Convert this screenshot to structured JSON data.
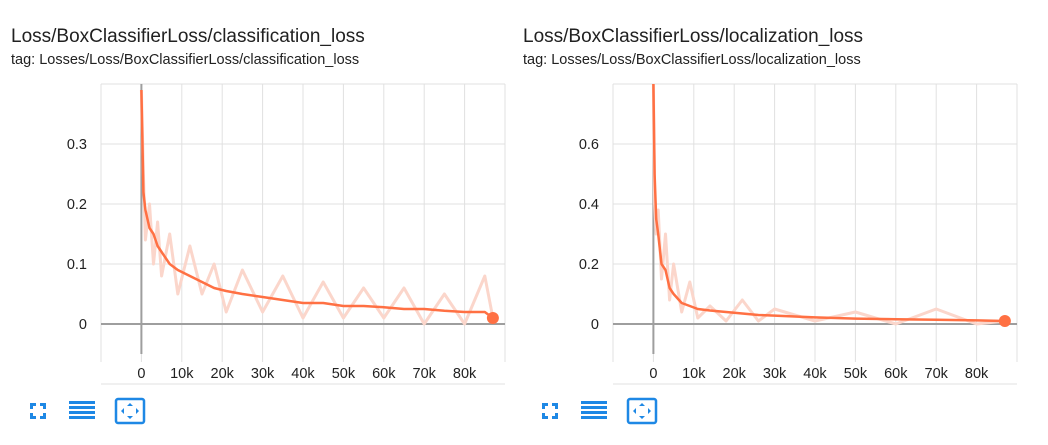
{
  "accent_color": "#ff7043",
  "series_color": "#ff7043",
  "raw_color": "#fbd6cb",
  "toolbar_icons": [
    "fullscreen-icon",
    "data-table-icon",
    "fit-domain-icon"
  ],
  "chart_data": [
    {
      "type": "line",
      "title": "Loss/BoxClassifierLoss/classification_loss",
      "subtitle": "tag: Losses/Loss/BoxClassifierLoss/classification_loss",
      "xlabel": "",
      "ylabel": "",
      "xlim": [
        -10000,
        90000
      ],
      "ylim": [
        -0.05,
        0.4
      ],
      "x_ticks": [
        0,
        10000,
        20000,
        30000,
        40000,
        50000,
        60000,
        70000,
        80000
      ],
      "x_tick_labels": [
        "0",
        "10k",
        "20k",
        "30k",
        "40k",
        "50k",
        "60k",
        "70k",
        "80k"
      ],
      "y_ticks": [
        0,
        0.1,
        0.2,
        0.3
      ],
      "y_tick_labels": [
        "0",
        "0.1",
        "0.2",
        "0.3"
      ],
      "grid": true,
      "legend": "none",
      "series": [
        {
          "style": "smoothed",
          "x": [
            0,
            500,
            1000,
            2000,
            3000,
            4000,
            5000,
            7000,
            9000,
            12000,
            15000,
            18000,
            21000,
            25000,
            30000,
            35000,
            40000,
            45000,
            50000,
            55000,
            60000,
            65000,
            70000,
            75000,
            80000,
            85000,
            87000
          ],
          "y": [
            0.39,
            0.22,
            0.19,
            0.16,
            0.15,
            0.13,
            0.12,
            0.1,
            0.09,
            0.08,
            0.07,
            0.06,
            0.055,
            0.05,
            0.045,
            0.04,
            0.035,
            0.035,
            0.03,
            0.03,
            0.028,
            0.025,
            0.025,
            0.022,
            0.02,
            0.02,
            0.01
          ]
        },
        {
          "style": "raw",
          "x": [
            0,
            500,
            1000,
            2000,
            3000,
            4000,
            5000,
            7000,
            9000,
            12000,
            15000,
            18000,
            21000,
            25000,
            30000,
            35000,
            40000,
            45000,
            50000,
            55000,
            60000,
            65000,
            70000,
            75000,
            80000,
            85000,
            87000
          ],
          "y": [
            0.39,
            0.25,
            0.14,
            0.2,
            0.1,
            0.17,
            0.08,
            0.15,
            0.05,
            0.13,
            0.05,
            0.1,
            0.02,
            0.09,
            0.02,
            0.08,
            0.01,
            0.07,
            0.01,
            0.06,
            0.01,
            0.06,
            0.0,
            0.05,
            0.0,
            0.08,
            0.01
          ]
        }
      ]
    },
    {
      "type": "line",
      "title": "Loss/BoxClassifierLoss/localization_loss",
      "subtitle": "tag: Losses/Loss/BoxClassifierLoss/localization_loss",
      "xlabel": "",
      "ylabel": "",
      "xlim": [
        -10000,
        90000
      ],
      "ylim": [
        -0.1,
        0.8
      ],
      "x_ticks": [
        0,
        10000,
        20000,
        30000,
        40000,
        50000,
        60000,
        70000,
        80000
      ],
      "x_tick_labels": [
        "0",
        "10k",
        "20k",
        "30k",
        "40k",
        "50k",
        "60k",
        "70k",
        "80k"
      ],
      "y_ticks": [
        0,
        0.2,
        0.4,
        0.6
      ],
      "y_tick_labels": [
        "0",
        "0.2",
        "0.4",
        "0.6"
      ],
      "grid": true,
      "legend": "none",
      "series": [
        {
          "style": "smoothed",
          "x": [
            0,
            300,
            700,
            1200,
            2000,
            3000,
            4000,
            5000,
            7000,
            9000,
            11000,
            14000,
            18000,
            22000,
            26000,
            30000,
            40000,
            50000,
            60000,
            70000,
            80000,
            87000
          ],
          "y": [
            0.8,
            0.5,
            0.35,
            0.3,
            0.2,
            0.18,
            0.12,
            0.1,
            0.07,
            0.06,
            0.05,
            0.045,
            0.04,
            0.035,
            0.03,
            0.028,
            0.022,
            0.018,
            0.016,
            0.014,
            0.012,
            0.01
          ]
        },
        {
          "style": "raw",
          "x": [
            0,
            300,
            700,
            1200,
            2000,
            3000,
            4000,
            5000,
            7000,
            9000,
            11000,
            14000,
            18000,
            22000,
            26000,
            30000,
            40000,
            50000,
            60000,
            70000,
            80000,
            87000
          ],
          "y": [
            0.8,
            0.4,
            0.3,
            0.38,
            0.15,
            0.3,
            0.08,
            0.2,
            0.04,
            0.14,
            0.02,
            0.06,
            0.01,
            0.08,
            0.01,
            0.05,
            0.01,
            0.04,
            0.0,
            0.05,
            0.0,
            0.01
          ]
        }
      ]
    }
  ]
}
